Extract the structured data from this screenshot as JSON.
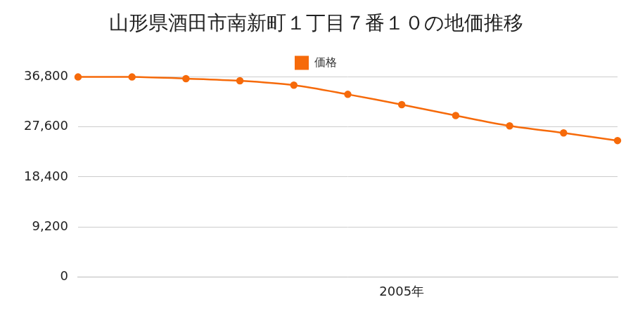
{
  "chart_data": {
    "type": "line",
    "title": "山形県酒田市南新町１丁目７番１０の地価推移",
    "categories": [
      null,
      null,
      null,
      null,
      null,
      null,
      "2005年",
      null,
      null,
      null,
      null
    ],
    "series": [
      {
        "name": "価格",
        "color": "#f66a0a",
        "marker": "circle",
        "values": [
          36800,
          36800,
          36500,
          36100,
          35300,
          33600,
          31700,
          29700,
          27800,
          26500,
          25100
        ]
      }
    ],
    "ylim": [
      0,
      36800
    ],
    "yticks": [
      0,
      {
        "value": 9200,
        "label": "9,200"
      },
      {
        "value": 18400,
        "label": "18,400"
      },
      {
        "value": 27600,
        "label": "27,600"
      },
      {
        "value": 36800,
        "label": "36,800"
      }
    ],
    "grid": true,
    "legend": "top"
  }
}
